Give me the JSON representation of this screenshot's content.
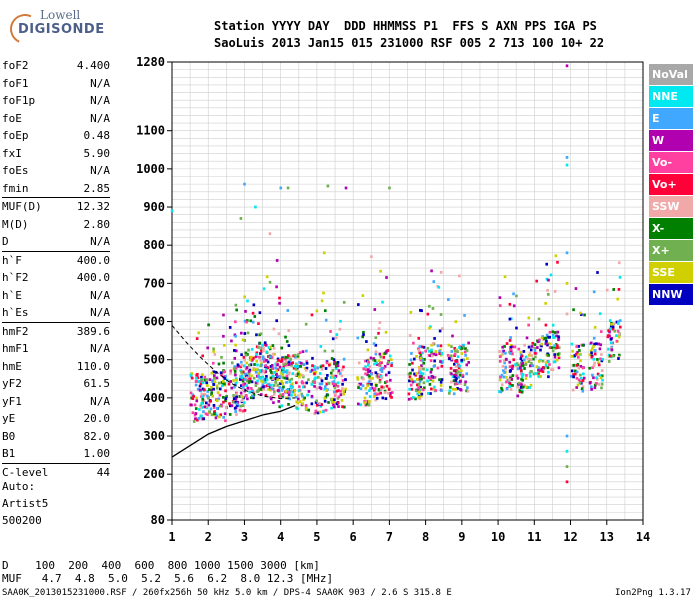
{
  "logo": {
    "top": "Lowell",
    "bottom": "DIGISONDE"
  },
  "header": {
    "line1": "Station YYYY DAY  DDD HHMMSS P1  FFS S AXN PPS IGA PS",
    "line2": "SaoLuis 2013 Jan15 015 231000 RSF 005 2 713 100 10+ 22"
  },
  "params": [
    {
      "label": "foF2",
      "value": "4.400"
    },
    {
      "label": "foF1",
      "value": "N/A"
    },
    {
      "label": "foF1p",
      "value": "N/A"
    },
    {
      "label": "foE",
      "value": "N/A"
    },
    {
      "label": "foEp",
      "value": "0.48"
    },
    {
      "label": "fxI",
      "value": "5.90"
    },
    {
      "label": "foEs",
      "value": "N/A"
    },
    {
      "label": "fmin",
      "value": "2.85"
    },
    {
      "label": "MUF(D)",
      "value": "12.32"
    },
    {
      "label": "M(D)",
      "value": "2.80"
    },
    {
      "label": "D",
      "value": "N/A"
    },
    {
      "label": "h`F",
      "value": "400.0"
    },
    {
      "label": "h`F2",
      "value": "400.0"
    },
    {
      "label": "h`E",
      "value": "N/A"
    },
    {
      "label": "h`Es",
      "value": "N/A"
    },
    {
      "label": "hmF2",
      "value": "389.6"
    },
    {
      "label": "hmF1",
      "value": "N/A"
    },
    {
      "label": "hmE",
      "value": "110.0"
    },
    {
      "label": "yF2",
      "value": "61.5"
    },
    {
      "label": "yF1",
      "value": "N/A"
    },
    {
      "label": "yE",
      "value": "20.0"
    },
    {
      "label": "B0",
      "value": "82.0"
    },
    {
      "label": "B1",
      "value": "1.00"
    },
    {
      "label": "C-level",
      "value": "44"
    }
  ],
  "auto": {
    "line1": "Auto:",
    "line2": "Artist5",
    "line3": "500200"
  },
  "legend": [
    {
      "label": "NoVal",
      "color": "#a8a8a8"
    },
    {
      "label": "NNE",
      "color": "#00e8f0"
    },
    {
      "label": "E",
      "color": "#40a8ff"
    },
    {
      "label": "W",
      "color": "#b000b0"
    },
    {
      "label": "Vo-",
      "color": "#ff40a0"
    },
    {
      "label": "Vo+",
      "color": "#ff0038"
    },
    {
      "label": "SSW",
      "color": "#f0a8a8"
    },
    {
      "label": "X-",
      "color": "#008000"
    },
    {
      "label": "X+",
      "color": "#70b050"
    },
    {
      "label": "SSE",
      "color": "#d0d000"
    },
    {
      "label": "NNW",
      "color": "#0000c0"
    }
  ],
  "footer": {
    "d_row": "D    100  200  400  600  800 1000 1500 3000 [km]",
    "muf_row": "MUF   4.7  4.8  5.0  5.2  5.6  6.2  8.0 12.3 [MHz]",
    "source": "SAA0K_2013015231000.RSF / 260fx256h 50 kHz 5.0 km / DPS-4 SAA0K 903 / 2.6 S 315.8 E",
    "version": "Ion2Png 1.3.17"
  },
  "chart_data": {
    "type": "scatter",
    "x_ticks": [
      1,
      2,
      3,
      4,
      5,
      6,
      7,
      8,
      9,
      10,
      11,
      12,
      13,
      14
    ],
    "y_ticks": [
      80,
      200,
      300,
      400,
      500,
      600,
      700,
      800,
      900,
      1000,
      1100,
      1280
    ],
    "xlim": [
      1,
      14
    ],
    "ylim": [
      80,
      1280
    ],
    "grid": true,
    "legend_position": "right",
    "series": [
      {
        "name": "trace",
        "values": [
          [
            1.0,
            245
          ],
          [
            1.5,
            275
          ],
          [
            2.0,
            305
          ],
          [
            2.5,
            325
          ],
          [
            3.0,
            340
          ],
          [
            3.5,
            355
          ],
          [
            4.0,
            365
          ],
          [
            4.4,
            380
          ]
        ]
      },
      {
        "name": "profile",
        "values": [
          [
            1.0,
            590
          ],
          [
            1.4,
            545
          ],
          [
            1.8,
            505
          ],
          [
            2.2,
            470
          ],
          [
            2.6,
            440
          ],
          [
            3.0,
            420
          ],
          [
            3.5,
            405
          ],
          [
            4.0,
            398
          ],
          [
            4.4,
            400
          ]
        ]
      },
      {
        "name": "echo_clusters",
        "values": [
          [
            1.7,
            400
          ],
          [
            2.0,
            410
          ],
          [
            2.3,
            405
          ],
          [
            2.6,
            420
          ],
          [
            2.9,
            430
          ],
          [
            3.1,
            450
          ],
          [
            3.3,
            470
          ],
          [
            3.5,
            480
          ],
          [
            3.7,
            470
          ],
          [
            3.9,
            450
          ],
          [
            4.1,
            440
          ],
          [
            4.3,
            460
          ],
          [
            4.6,
            430
          ],
          [
            5.0,
            420
          ],
          [
            5.4,
            430
          ],
          [
            5.6,
            440
          ],
          [
            6.3,
            440
          ],
          [
            6.6,
            450
          ],
          [
            6.9,
            460
          ],
          [
            7.7,
            460
          ],
          [
            8.0,
            470
          ],
          [
            8.3,
            480
          ],
          [
            8.8,
            470
          ],
          [
            9.0,
            480
          ],
          [
            10.2,
            480
          ],
          [
            10.5,
            470
          ],
          [
            10.8,
            490
          ],
          [
            11.2,
            510
          ],
          [
            11.5,
            520
          ],
          [
            12.2,
            480
          ],
          [
            12.7,
            480
          ],
          [
            13.2,
            550
          ]
        ]
      },
      {
        "name": "sparse_high",
        "values": [
          [
            3.0,
            960
          ],
          [
            3.3,
            900
          ],
          [
            4.0,
            950
          ],
          [
            4.2,
            950
          ],
          [
            5.3,
            955
          ],
          [
            5.8,
            950
          ],
          [
            7.0,
            950
          ],
          [
            1.0,
            890
          ],
          [
            2.9,
            870
          ],
          [
            3.7,
            830
          ],
          [
            3.9,
            760
          ],
          [
            5.2,
            780
          ],
          [
            6.5,
            770
          ],
          [
            8.1,
            640
          ],
          [
            11.9,
            1270
          ],
          [
            11.9,
            1030
          ],
          [
            11.9,
            1010
          ],
          [
            11.9,
            780
          ],
          [
            11.9,
            700
          ],
          [
            11.9,
            620
          ],
          [
            11.9,
            300
          ],
          [
            11.9,
            260
          ],
          [
            11.9,
            220
          ],
          [
            11.9,
            180
          ]
        ]
      }
    ]
  }
}
